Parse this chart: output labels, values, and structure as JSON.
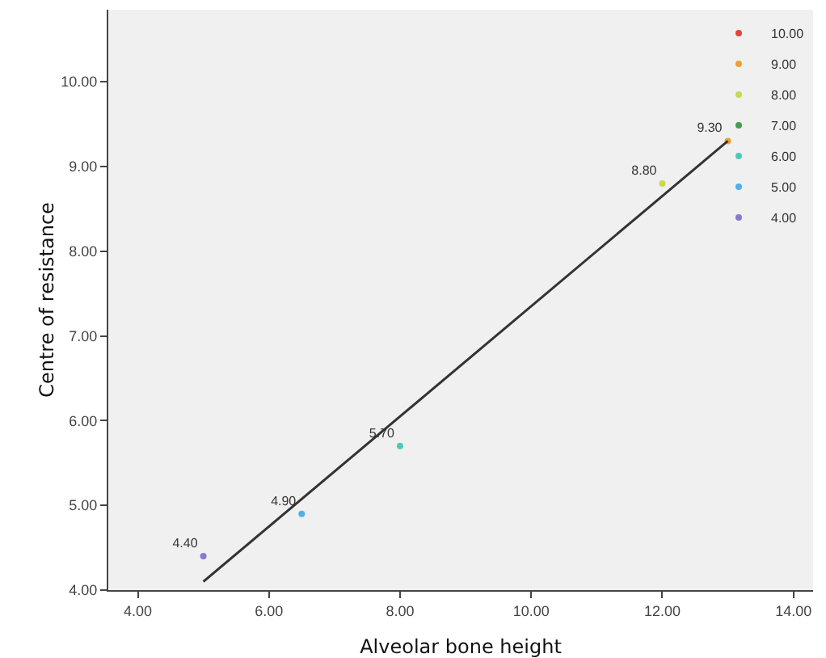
{
  "chart_data": {
    "type": "scatter",
    "xlabel": "Alveolar bone height",
    "ylabel": "Centre of resistance",
    "xlim": [
      3.55,
      14.3
    ],
    "ylim": [
      4,
      10.85
    ],
    "xticks": [
      {
        "value": 4,
        "label": "4.00"
      },
      {
        "value": 6,
        "label": "6.00"
      },
      {
        "value": 8,
        "label": "8.00"
      },
      {
        "value": 10,
        "label": "10.00"
      },
      {
        "value": 12,
        "label": "12.00"
      },
      {
        "value": 14,
        "label": "14.00"
      }
    ],
    "yticks": [
      {
        "value": 4,
        "label": "4.00"
      },
      {
        "value": 5,
        "label": "5.00"
      },
      {
        "value": 6,
        "label": "6.00"
      },
      {
        "value": 7,
        "label": "7.00"
      },
      {
        "value": 8,
        "label": "8.00"
      },
      {
        "value": 9,
        "label": "9.00"
      },
      {
        "value": 10,
        "label": "10.00"
      }
    ],
    "grid": false,
    "legend": "top right",
    "marker": "circle",
    "series": [
      {
        "name": "10.00",
        "color": "#e8413a"
      },
      {
        "name": "9.00",
        "color": "#f0a030",
        "x": [
          13
        ],
        "values": [
          9.3
        ],
        "value_labels": [
          "9.30"
        ]
      },
      {
        "name": "8.00",
        "color": "#c8d850",
        "x": [
          12
        ],
        "values": [
          8.8
        ],
        "value_labels": [
          "8.80"
        ]
      },
      {
        "name": "7.00",
        "color": "#40a050"
      },
      {
        "name": "6.00",
        "color": "#50c8b8",
        "x": [
          8
        ],
        "values": [
          5.7
        ],
        "value_labels": [
          "5.70"
        ]
      },
      {
        "name": "5.00",
        "color": "#50b0e8",
        "x": [
          6.5
        ],
        "values": [
          4.9
        ],
        "value_labels": [
          "4.90"
        ]
      },
      {
        "name": "4.00",
        "color": "#8878d0",
        "x": [
          5
        ],
        "values": [
          4.4
        ],
        "value_labels": [
          "4.40"
        ]
      },
      {
        "type": "line",
        "marker": "none",
        "color": "#333333",
        "x": [
          5,
          13
        ],
        "values": [
          4.1,
          9.3
        ]
      }
    ]
  }
}
